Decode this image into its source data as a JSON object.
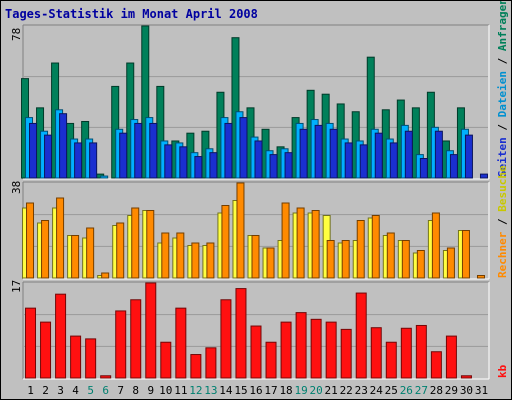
{
  "title": "Tages-Statistik im Monat April 2008",
  "panels": {
    "top": {
      "max_label": "78",
      "legend": [
        "Anfragen",
        "Dateien",
        "Seiten"
      ]
    },
    "middle": {
      "max_label": "38",
      "legend": [
        "Besuche",
        "Rechner"
      ]
    },
    "bottom": {
      "max_label": "17",
      "legend": [
        "kb"
      ]
    }
  },
  "legend_separator": " / ",
  "colors": {
    "background": "#c0c0c0",
    "panel_bg": "#c0c0c0",
    "anfragen": "#00805a",
    "dateien": "#00b0ff",
    "seiten": "#1a2fd0",
    "besuche": "#ffff40",
    "rechner": "#ff8a00",
    "kb": "#ff1010",
    "weekday_label": "#000000",
    "weekend_label": "#008070"
  },
  "chart_data": [
    {
      "type": "bar",
      "categories": [
        "1",
        "2",
        "3",
        "4",
        "5",
        "6",
        "7",
        "8",
        "9",
        "10",
        "11",
        "12",
        "13",
        "14",
        "15",
        "16",
        "17",
        "18",
        "19",
        "20",
        "21",
        "22",
        "23",
        "24",
        "25",
        "26",
        "27",
        "28",
        "29",
        "30",
        "31"
      ],
      "weekend_days": [
        "5",
        "6",
        "12",
        "13",
        "19",
        "20",
        "26",
        "27"
      ],
      "ylim": [
        0,
        78
      ],
      "series": [
        {
          "name": "Anfragen",
          "values": [
            51,
            36,
            59,
            28,
            29,
            2,
            47,
            59,
            78,
            47,
            19,
            23,
            24,
            44,
            72,
            36,
            25,
            16,
            31,
            45,
            43,
            38,
            34,
            62,
            35,
            40,
            36,
            44,
            19,
            36,
            0
          ]
        },
        {
          "name": "Dateien",
          "values": [
            31,
            24,
            35,
            20,
            20,
            1,
            25,
            30,
            31,
            19,
            18,
            13,
            15,
            31,
            34,
            21,
            14,
            15,
            28,
            30,
            28,
            20,
            19,
            25,
            20,
            27,
            12,
            26,
            14,
            25,
            0
          ]
        },
        {
          "name": "Seiten",
          "values": [
            28,
            22,
            33,
            18,
            18,
            0,
            23,
            28,
            28,
            17,
            16,
            11,
            13,
            28,
            31,
            19,
            12,
            13,
            25,
            27,
            25,
            18,
            17,
            23,
            18,
            24,
            10,
            24,
            12,
            22,
            2
          ]
        }
      ]
    },
    {
      "type": "bar",
      "categories": [
        "1",
        "2",
        "3",
        "4",
        "5",
        "6",
        "7",
        "8",
        "9",
        "10",
        "11",
        "12",
        "13",
        "14",
        "15",
        "16",
        "17",
        "18",
        "19",
        "20",
        "21",
        "22",
        "23",
        "24",
        "25",
        "26",
        "27",
        "28",
        "29",
        "30",
        "31"
      ],
      "ylim": [
        0,
        38
      ],
      "series": [
        {
          "name": "Besuche",
          "values": [
            28,
            22,
            28,
            17,
            16,
            1,
            21,
            25,
            27,
            14,
            16,
            13,
            13,
            26,
            31,
            17,
            12,
            15,
            26,
            26,
            25,
            14,
            15,
            24,
            17,
            15,
            10,
            23,
            11,
            19,
            0
          ]
        },
        {
          "name": "Rechner",
          "values": [
            30,
            23,
            32,
            17,
            20,
            2,
            22,
            28,
            27,
            18,
            18,
            14,
            14,
            29,
            38,
            17,
            12,
            30,
            28,
            27,
            15,
            15,
            23,
            25,
            18,
            15,
            11,
            26,
            12,
            19,
            1
          ]
        }
      ]
    },
    {
      "type": "bar",
      "categories": [
        "1",
        "2",
        "3",
        "4",
        "5",
        "6",
        "7",
        "8",
        "9",
        "10",
        "11",
        "12",
        "13",
        "14",
        "15",
        "16",
        "17",
        "18",
        "19",
        "20",
        "21",
        "22",
        "23",
        "24",
        "25",
        "26",
        "27",
        "28",
        "29",
        "30",
        "31"
      ],
      "ylim": [
        0,
        17
      ],
      "series": [
        {
          "name": "kb",
          "values": [
            12.5,
            10,
            15,
            7.5,
            7,
            0.4,
            12,
            14,
            17,
            6.4,
            12.5,
            4.2,
            5.4,
            14,
            16,
            9.3,
            6.4,
            10,
            11.7,
            10.5,
            10,
            8.7,
            15.2,
            9,
            6.4,
            8.9,
            9.4,
            4.7,
            7.5,
            0.4,
            0
          ]
        }
      ]
    }
  ]
}
